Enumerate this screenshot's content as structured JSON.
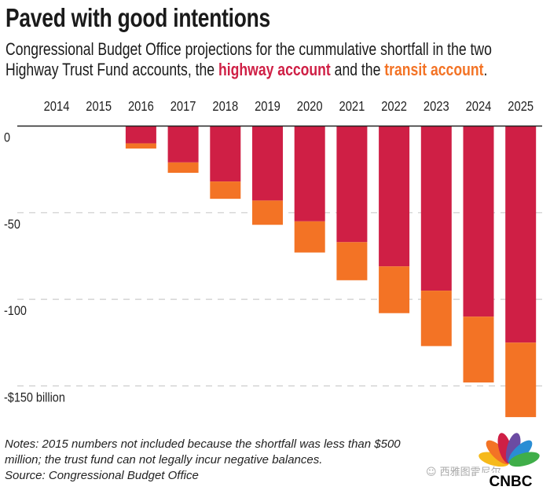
{
  "chart_data": {
    "type": "bar",
    "stacked": true,
    "title": "Paved with good intentions",
    "subtitle_line1": "Congressional Budget Office projections for the cummulative shortfall in the two",
    "subtitle_line2_pre": "Highway Trust Fund accounts, the ",
    "subtitle_highway": "highway account",
    "subtitle_mid": " and the ",
    "subtitle_transit": "transit account",
    "subtitle_end": ".",
    "categories": [
      "2014",
      "2015",
      "2016",
      "2017",
      "2018",
      "2019",
      "2020",
      "2021",
      "2022",
      "2023",
      "2024",
      "2025"
    ],
    "series": [
      {
        "name": "highway account",
        "color": "#cf1f45",
        "values": [
          0,
          0,
          -10,
          -21,
          -32,
          -43,
          -55,
          -67,
          -81,
          -95,
          -110,
          -125
        ]
      },
      {
        "name": "transit account",
        "color": "#f37325",
        "values": [
          0,
          0,
          -3,
          -6,
          -10,
          -14,
          -18,
          -22,
          -27,
          -32,
          -38,
          -43
        ]
      }
    ],
    "ylim": [
      -170,
      0
    ],
    "yticks": [
      0,
      -50,
      -100,
      -150
    ],
    "ytick_labels": [
      "0",
      "-50",
      "-100",
      "-$150 billion"
    ],
    "grid": true,
    "xaxis_position": "top"
  },
  "notes": {
    "line1": "Notes: 2015 numbers not included because the shortfall was less than $500",
    "line2": "million; the trust fund can not legally incur negative balances.",
    "source": "Source: Congressional Budget Office"
  },
  "logo": {
    "text": "CNBC",
    "watermark": "西雅图雷尼尔"
  }
}
